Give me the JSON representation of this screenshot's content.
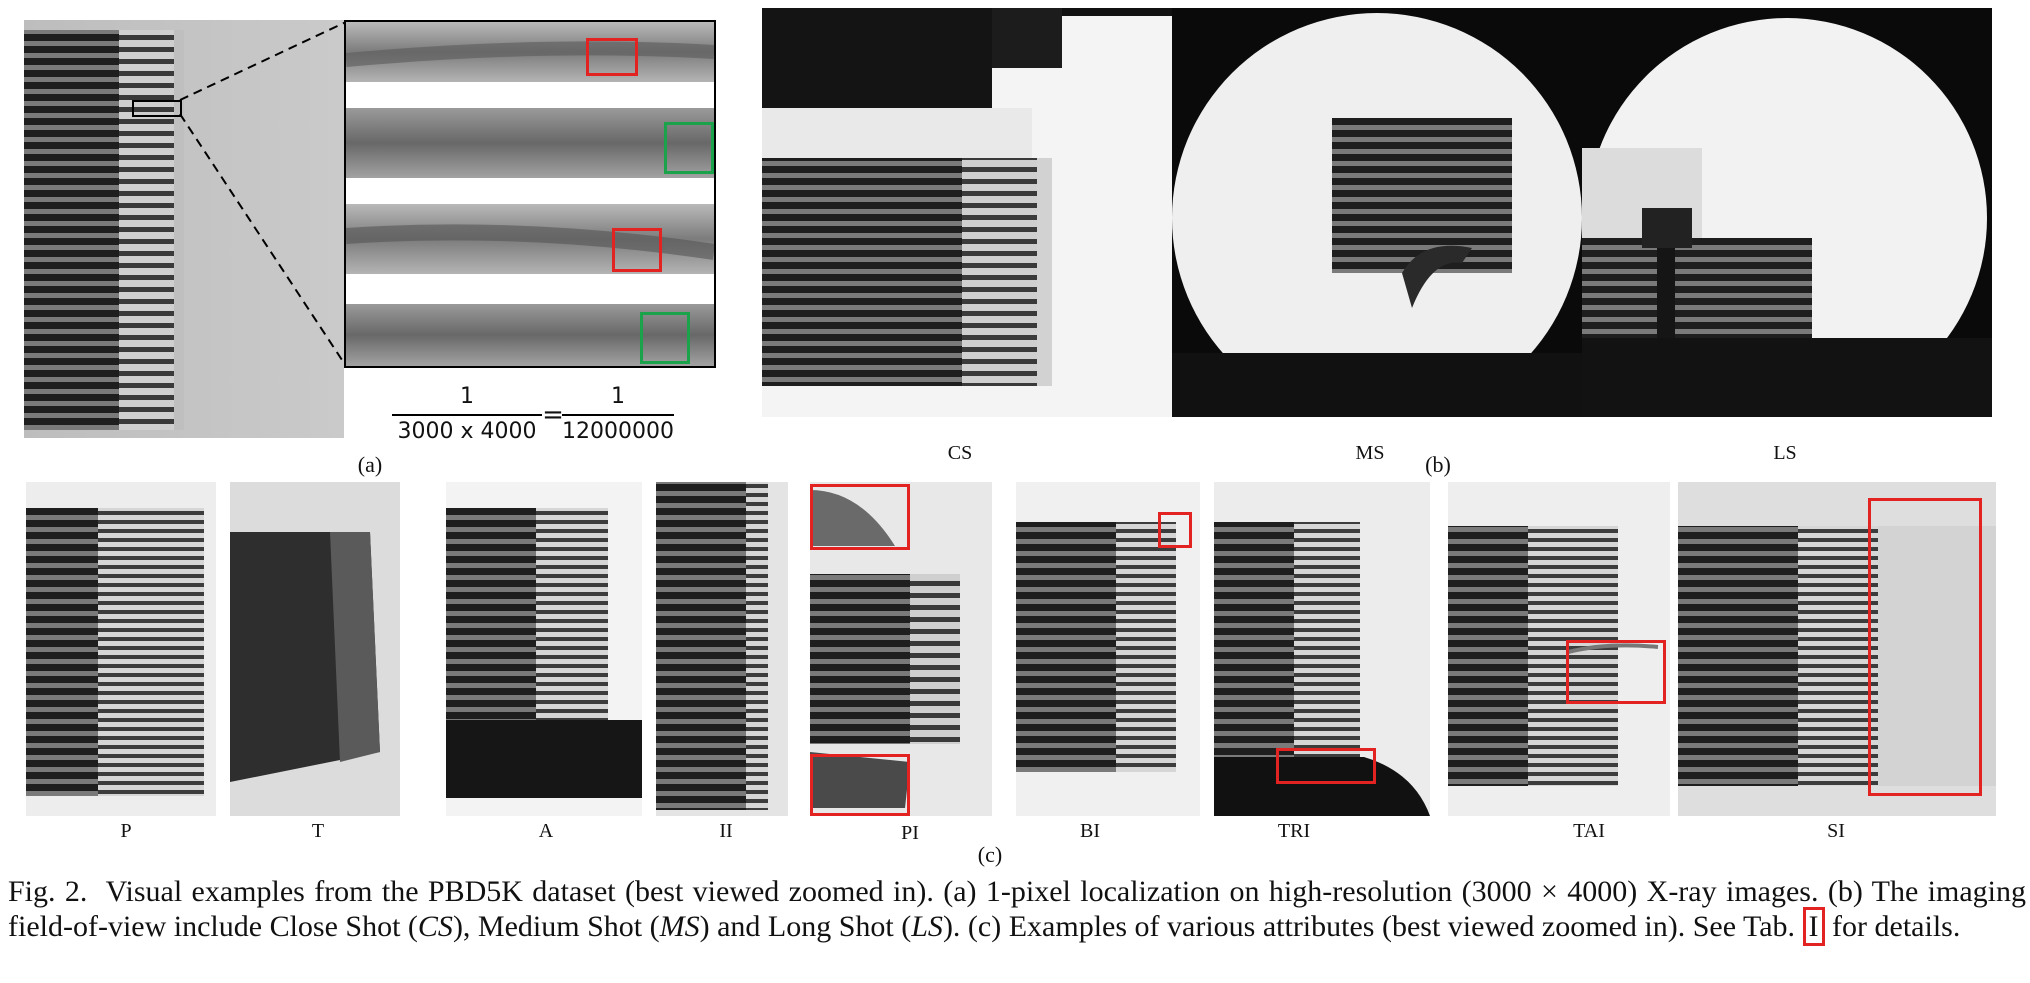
{
  "panel_a": {
    "label": "(a)",
    "equation": {
      "num_left": "1",
      "den_left": "3000 x 4000",
      "equals": "=",
      "num_right": "1",
      "den_right": "12000000"
    }
  },
  "panel_b": {
    "label": "(b)",
    "views": [
      "CS",
      "MS",
      "LS"
    ]
  },
  "panel_c": {
    "label": "(c)",
    "attributes": [
      "P",
      "T",
      "A",
      "II",
      "PI",
      "BI",
      "TRI",
      "TAI",
      "SI"
    ]
  },
  "caption": {
    "fig": "Fig. 2.",
    "text_1": "Visual examples from the PBD5K dataset (best viewed zoomed in). (a) 1-pixel localization on high-resolution (3000 × 4000) X-ray images. (b) The imaging field-of-view include Close Shot (",
    "cs": "CS",
    "text_2": "), Medium Shot (",
    "ms": "MS",
    "text_3": ") and Long Shot (",
    "ls": "LS",
    "text_4": "). (c) Examples of various attributes (best viewed zoomed in). See Tab.",
    "tab_ref": "I",
    "text_5": "for details."
  },
  "colors": {
    "highlight_red": "#e32222",
    "highlight_green": "#1aa34a"
  }
}
